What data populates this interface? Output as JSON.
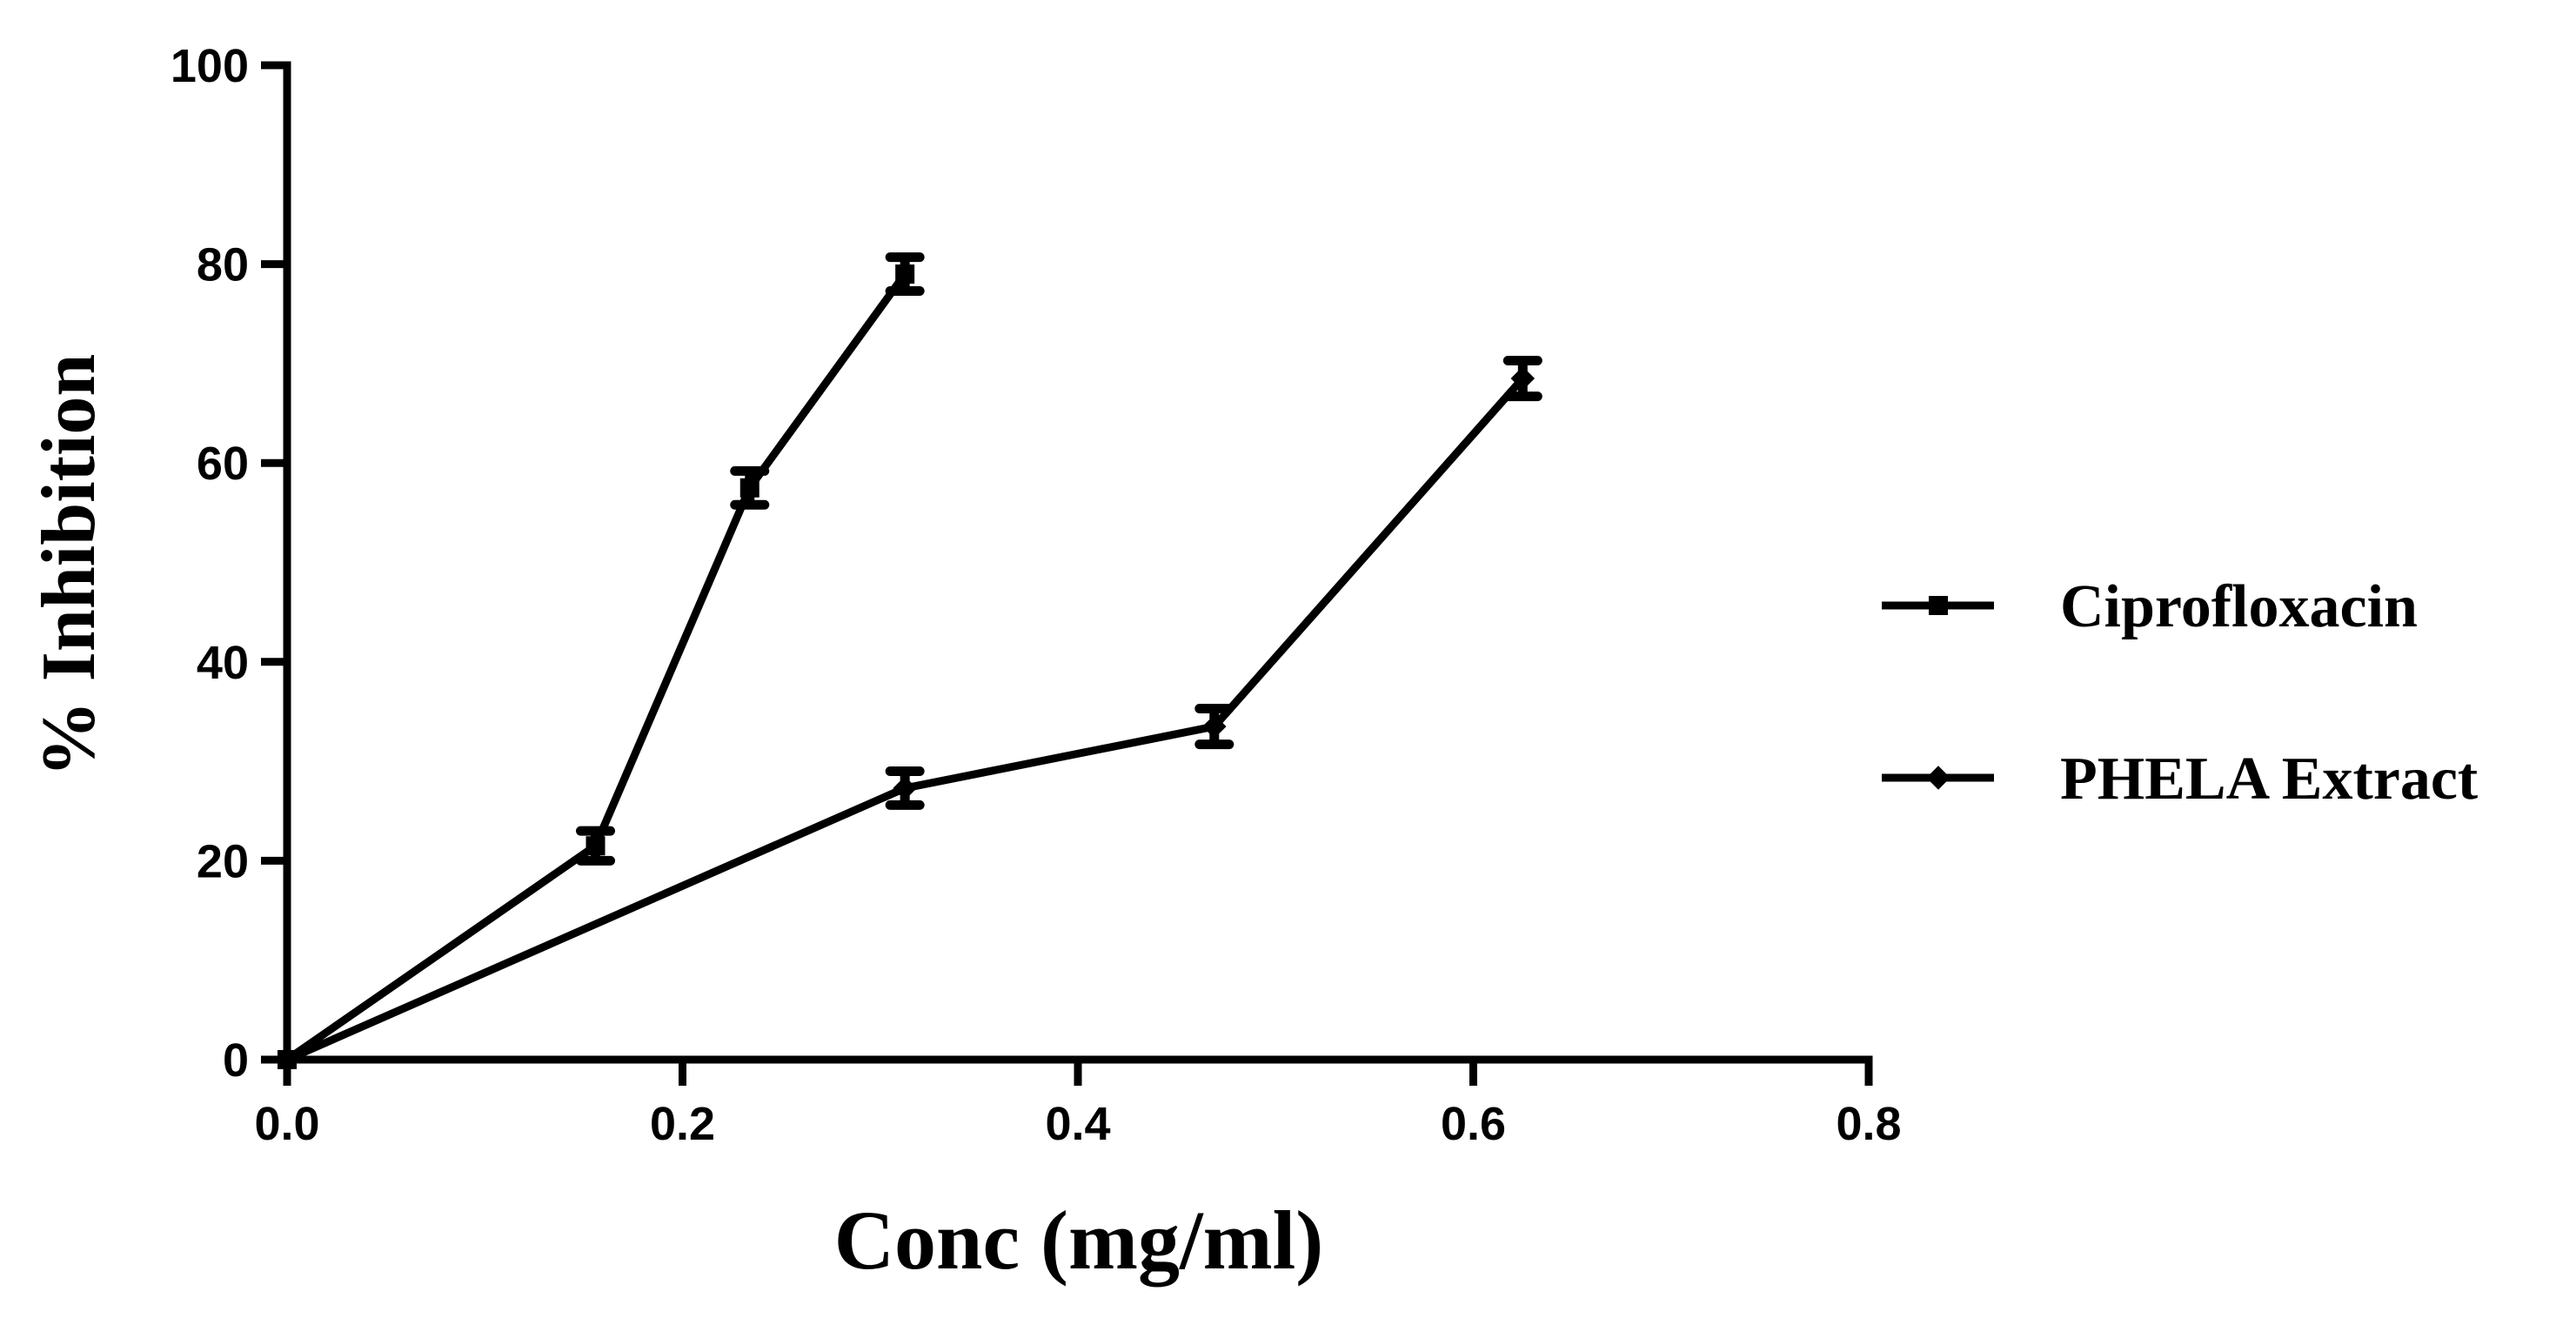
{
  "chart_data": {
    "type": "line",
    "title": "",
    "xlabel": "Conc (mg/ml)",
    "ylabel": "% Inhibition",
    "xlim": [
      0,
      0.8
    ],
    "ylim": [
      0,
      100
    ],
    "x_ticks": [
      0.0,
      0.2,
      0.4,
      0.6,
      0.8
    ],
    "x_tick_labels": [
      "0.0",
      "0.2",
      "0.4",
      "0.6",
      "0.8"
    ],
    "y_ticks": [
      0,
      20,
      40,
      60,
      80,
      100
    ],
    "y_tick_labels": [
      "0",
      "20",
      "40",
      "60",
      "80",
      "100"
    ],
    "grid": false,
    "legend_position": "right",
    "series": [
      {
        "name": "Ciprofloxacin",
        "marker": "square",
        "color": "#000000",
        "points": [
          {
            "x": 0.0,
            "y": 0,
            "err": 0
          },
          {
            "x": 0.156,
            "y": 21.5,
            "err": 1.5
          },
          {
            "x": 0.234,
            "y": 57.5,
            "err": 1.7
          },
          {
            "x": 0.3125,
            "y": 79,
            "err": 1.7
          }
        ]
      },
      {
        "name": "PHELA Extract",
        "marker": "diamond",
        "color": "#000000",
        "points": [
          {
            "x": 0.0,
            "y": 0,
            "err": 0
          },
          {
            "x": 0.3125,
            "y": 27.3,
            "err": 1.7
          },
          {
            "x": 0.469,
            "y": 33.5,
            "err": 1.8
          },
          {
            "x": 0.625,
            "y": 68.5,
            "err": 1.8
          }
        ]
      }
    ]
  }
}
